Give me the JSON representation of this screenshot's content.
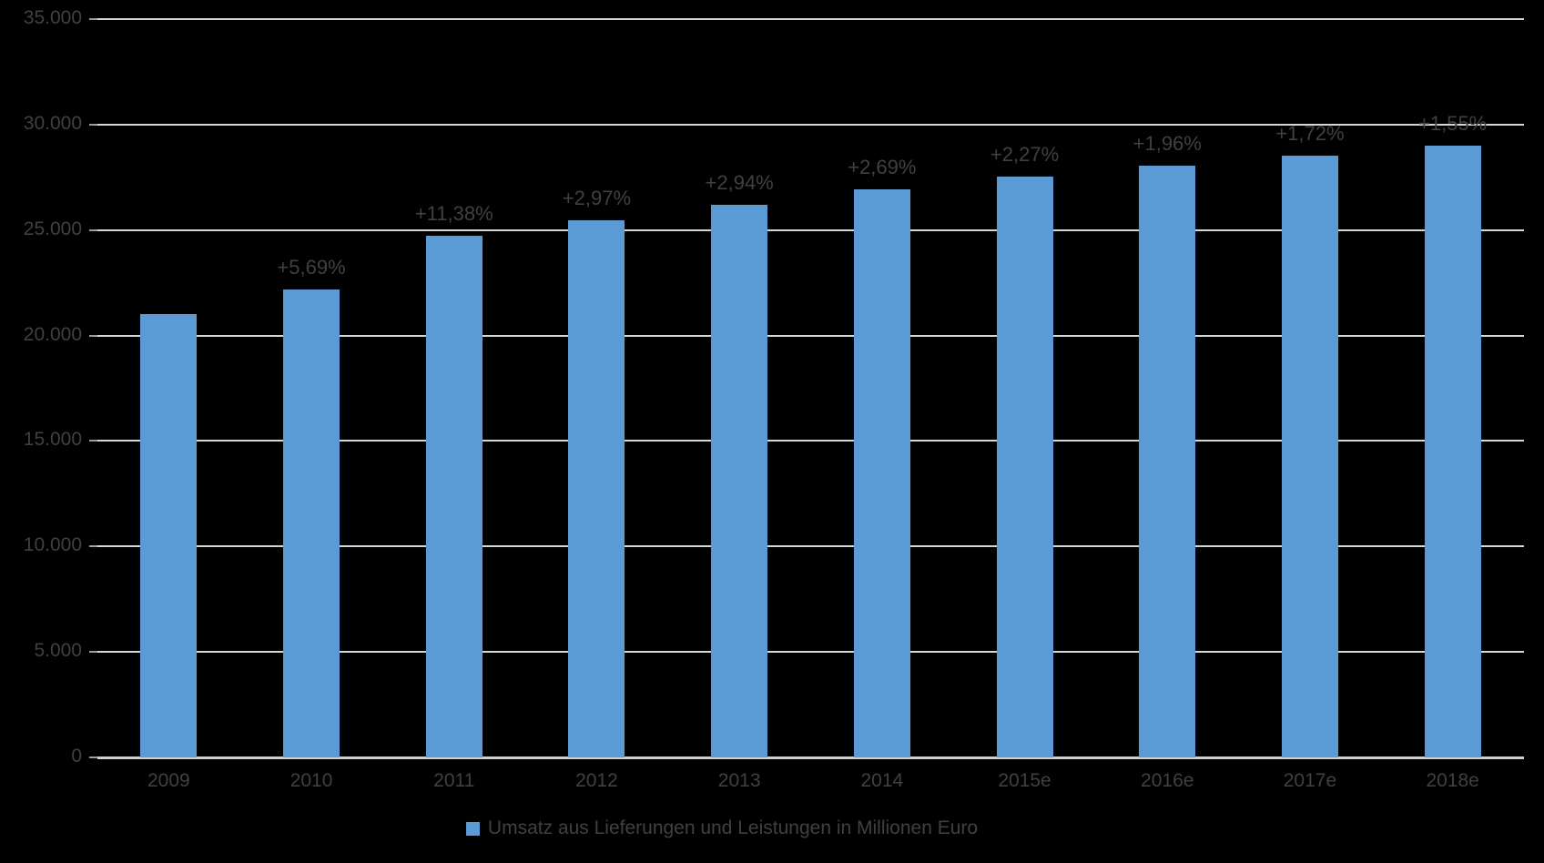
{
  "chart_data": {
    "type": "bar",
    "title": "",
    "categories": [
      "2009",
      "2010",
      "2011",
      "2012",
      "2013",
      "2014",
      "2015e",
      "2016e",
      "2017e",
      "2018e"
    ],
    "values": [
      21000,
      22195,
      24720,
      25455,
      26205,
      26910,
      27520,
      28060,
      28540,
      28985
    ],
    "bar_labels": [
      "",
      "+5,69%",
      "+11,38%",
      "+2,97%",
      "+2,94%",
      "+2,69%",
      "+2,27%",
      "+1,96%",
      "+1,72%",
      "+1,55%"
    ],
    "y_ticks": [
      {
        "label": "35.000",
        "value": 35000
      },
      {
        "label": "30.000",
        "value": 30000
      },
      {
        "label": "25.000",
        "value": 25000
      },
      {
        "label": "20.000",
        "value": 20000
      },
      {
        "label": "15.000",
        "value": 15000
      },
      {
        "label": "10.000",
        "value": 10000
      },
      {
        "label": "5.000",
        "value": 5000
      },
      {
        "label": "0",
        "value": 0
      }
    ],
    "ylim": [
      0,
      35000
    ],
    "grid": true,
    "legend_position": "bottom",
    "legend": [
      {
        "label": "Umsatz aus Lieferungen und Leistungen in Millionen Euro",
        "color": "#5B9BD5"
      }
    ],
    "colors": {
      "background": "#000000",
      "bar": "#5B9BD5",
      "gridline": "#D6D6D6",
      "axis_line": "#CFCFCF",
      "text": "#404040"
    }
  }
}
